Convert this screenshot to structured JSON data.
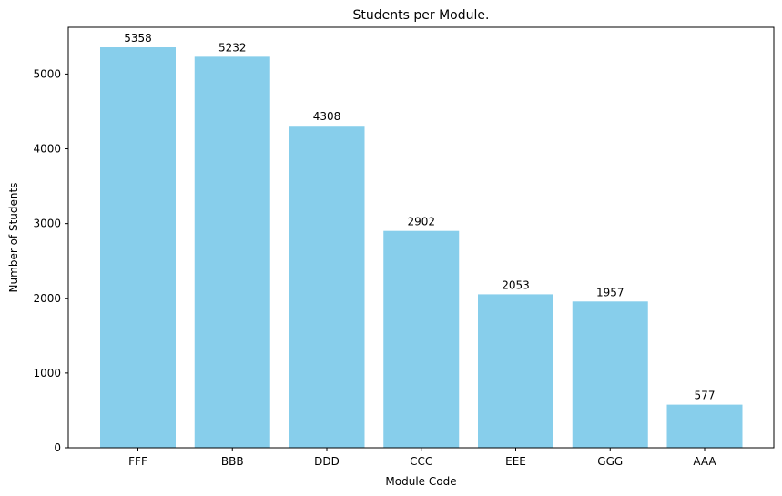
{
  "chart_data": {
    "type": "bar",
    "title": "Students per Module.",
    "xlabel": "Module Code",
    "ylabel": "Number of Students",
    "categories": [
      "FFF",
      "BBB",
      "DDD",
      "CCC",
      "EEE",
      "GGG",
      "AAA"
    ],
    "values": [
      5358,
      5232,
      4308,
      2902,
      2053,
      1957,
      577
    ],
    "value_labels": [
      "5358",
      "5232",
      "4308",
      "2902",
      "2053",
      "1957",
      "577"
    ],
    "ylim": [
      0,
      5626
    ],
    "yticks": [
      0,
      1000,
      2000,
      3000,
      4000,
      5000
    ],
    "ytick_labels": [
      "0",
      "1000",
      "2000",
      "3000",
      "4000",
      "5000"
    ],
    "grid": false,
    "bar_color": "#87ceeb"
  }
}
